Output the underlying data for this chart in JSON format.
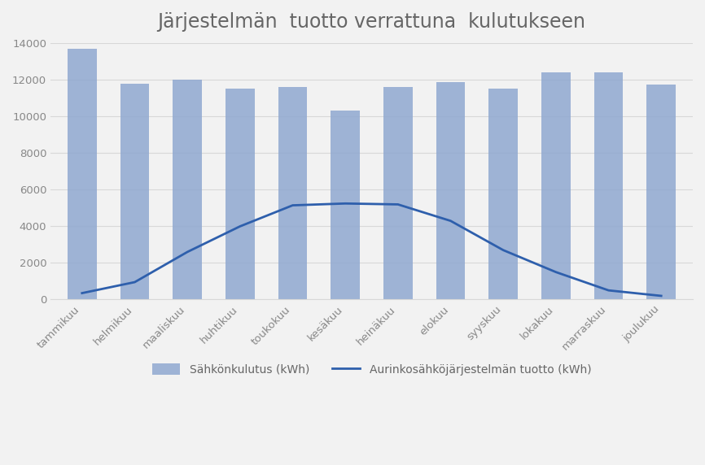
{
  "title": "Järjestelmän  tuotto verrattuna  kulutukseen",
  "categories": [
    "tammikuu",
    "helmikuu",
    "maaliskuu",
    "huhtikuu",
    "toukokuu",
    "kesäkuu",
    "heinäkuu",
    "elokuu",
    "syyskuu",
    "lokakuu",
    "marraskuu",
    "joulukuu"
  ],
  "consumption": [
    13700,
    11800,
    12000,
    11550,
    11600,
    10350,
    11600,
    11900,
    11550,
    12400,
    12400,
    11750
  ],
  "production": [
    350,
    950,
    2600,
    4000,
    5150,
    5250,
    5200,
    4300,
    2700,
    1500,
    500,
    200
  ],
  "bar_color": "#8FA8D0",
  "line_color": "#2E5FAC",
  "background_color": "#F2F2F2",
  "plot_bg_color": "#F2F2F2",
  "ylim": [
    0,
    14000
  ],
  "yticks": [
    0,
    2000,
    4000,
    6000,
    8000,
    10000,
    12000,
    14000
  ],
  "legend_bar_label": "Sähkönkulutus (kWh)",
  "legend_line_label": "Aurinkosähköjärjestelmän tuotto (kWh)",
  "title_fontsize": 17,
  "tick_fontsize": 9.5,
  "legend_fontsize": 10
}
